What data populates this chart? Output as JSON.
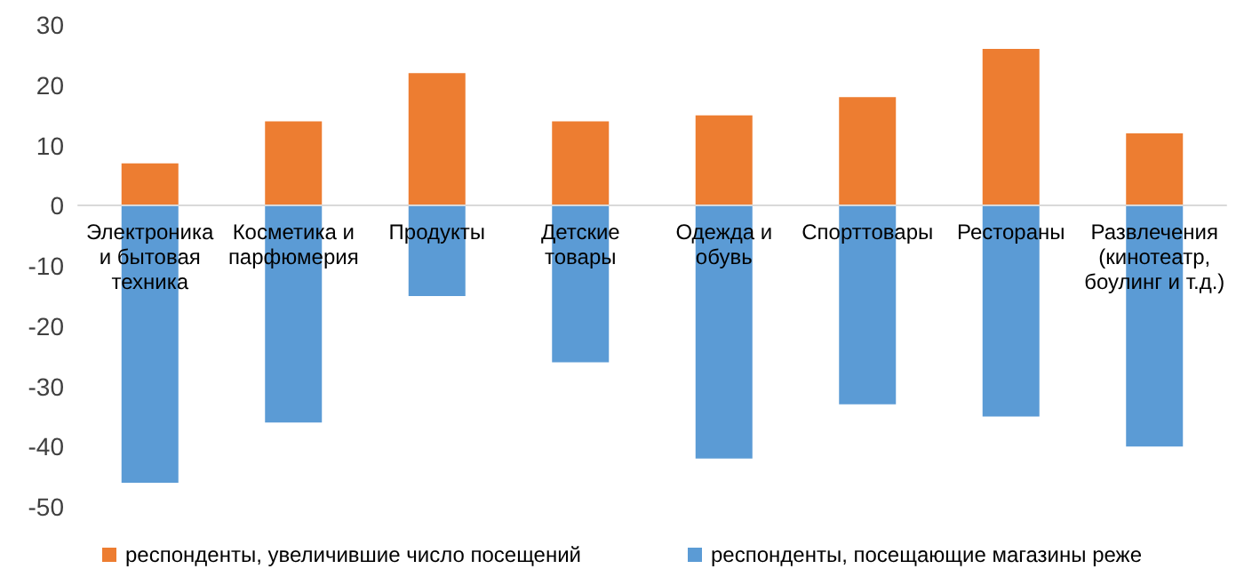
{
  "chart_data": {
    "type": "bar",
    "stacked": true,
    "categories": [
      "Электроника и бытовая техника",
      "Косметика и парфюмерия",
      "Продукты",
      "Детские товары",
      "Одежда и обувь",
      "Спорттовары",
      "Рестораны",
      "Развлечения (кинотеатр, боулинг и т.д.)"
    ],
    "series": [
      {
        "name": "респонденты, увеличившие число посещений",
        "color": "#ed7d31",
        "values": [
          7,
          14,
          22,
          14,
          15,
          18,
          26,
          12
        ]
      },
      {
        "name": "респонденты, посещающие магазины реже",
        "color": "#5b9bd5",
        "values": [
          -46,
          -36,
          -15,
          -26,
          -42,
          -33,
          -35,
          -40
        ]
      }
    ],
    "ylim": [
      -50,
      30
    ],
    "yticks": [
      -50,
      -40,
      -30,
      -20,
      -10,
      0,
      10,
      20,
      30
    ],
    "grid": false,
    "legend": "bottom"
  }
}
